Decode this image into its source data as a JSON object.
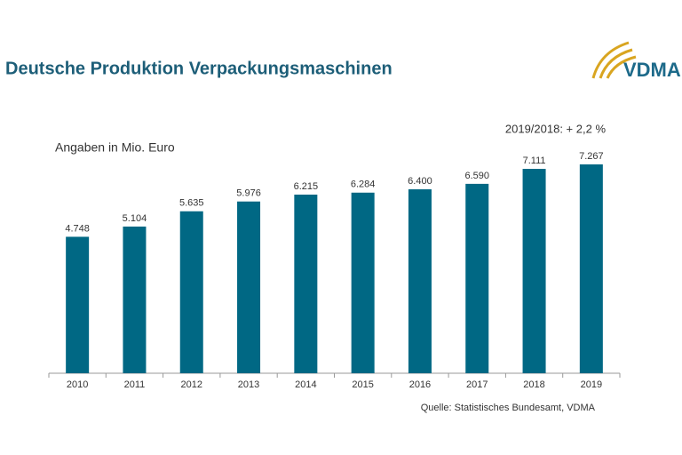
{
  "chart_data": {
    "type": "bar",
    "title": "Deutsche Produktion Verpackungsmaschinen",
    "subtitle": "Angaben in Mio. Euro",
    "annotation": "2019/2018: + 2,2 %",
    "source": "Quelle: Statistisches Bundesamt, VDMA",
    "categories": [
      "2010",
      "2011",
      "2012",
      "2013",
      "2014",
      "2015",
      "2016",
      "2017",
      "2018",
      "2019"
    ],
    "values": [
      4748,
      5104,
      5635,
      5976,
      6215,
      6284,
      6400,
      6590,
      7111,
      7267
    ],
    "value_labels": [
      "4.748",
      "5.104",
      "5.635",
      "5.976",
      "6.215",
      "6.284",
      "6.400",
      "6.590",
      "7.111",
      "7.267"
    ],
    "color": "#006884"
  },
  "logo": {
    "text": "VDMA"
  }
}
